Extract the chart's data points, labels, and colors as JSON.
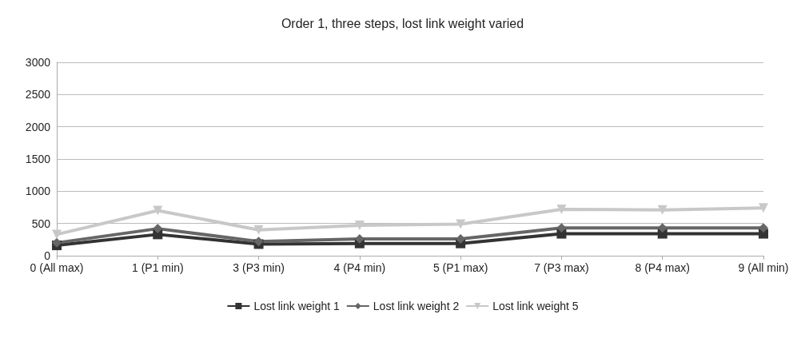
{
  "chart_data": {
    "type": "line",
    "title": "Order 1, three steps, lost link weight varied",
    "categories": [
      "0 (All max)",
      "1 (P1 min)",
      "3 (P3 min)",
      "4 (P4 min)",
      "5 (P1 max)",
      "7 (P3 max)",
      "8 (P4 max)",
      "9 (All min)"
    ],
    "series": [
      {
        "name": "Lost link weight 1",
        "color": "#333333",
        "marker": "square",
        "values": [
          160,
          330,
          180,
          190,
          190,
          340,
          340,
          340
        ]
      },
      {
        "name": "Lost link weight 2",
        "color": "#666666",
        "marker": "diamond",
        "values": [
          200,
          420,
          220,
          260,
          260,
          430,
          430,
          430
        ]
      },
      {
        "name": "Lost link weight 5",
        "color": "#c8c8c8",
        "marker": "triangle",
        "values": [
          330,
          700,
          400,
          470,
          490,
          720,
          710,
          740
        ]
      }
    ],
    "ylim": [
      0,
      3000
    ],
    "yticks": [
      0,
      500,
      1000,
      1500,
      2000,
      2500,
      3000
    ],
    "grid": "y",
    "legend": "bottom"
  }
}
